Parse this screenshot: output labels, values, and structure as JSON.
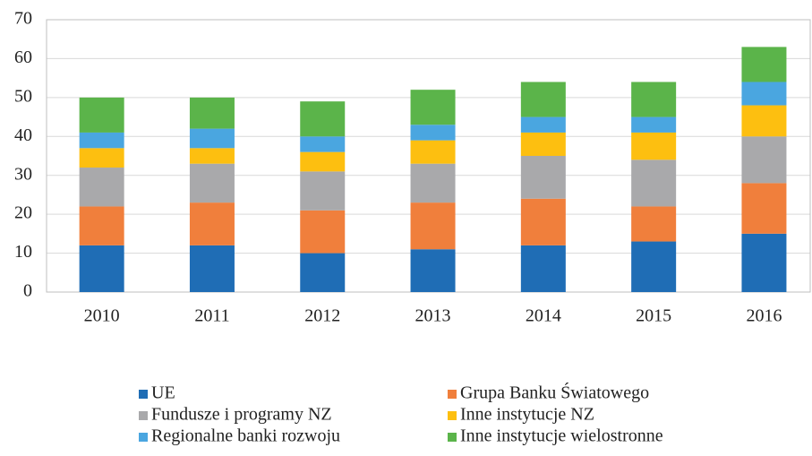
{
  "chart_data": {
    "type": "stacked_bar",
    "categories": [
      "2010",
      "2011",
      "2012",
      "2013",
      "2014",
      "2015",
      "2016"
    ],
    "series": [
      {
        "name": "UE",
        "color": "#1f6db5",
        "values": [
          12,
          12,
          10,
          11,
          12,
          13,
          15
        ]
      },
      {
        "name": "Grupa Banku Światowego",
        "color": "#f07f3c",
        "values": [
          10,
          11,
          11,
          12,
          12,
          9,
          13
        ]
      },
      {
        "name": "Fundusze i programy NZ",
        "color": "#a9a9ab",
        "values": [
          10,
          10,
          10,
          10,
          11,
          12,
          12
        ]
      },
      {
        "name": "Inne instytucje NZ",
        "color": "#fdbf10",
        "values": [
          5,
          4,
          5,
          6,
          6,
          7,
          8
        ]
      },
      {
        "name": "Regionalne banki rozwoju",
        "color": "#4aa6e0",
        "values": [
          4,
          5,
          4,
          4,
          4,
          4,
          6
        ]
      },
      {
        "name": "Inne instytucje wielostronne",
        "color": "#5bb44a",
        "values": [
          9,
          8,
          9,
          9,
          9,
          9,
          9
        ]
      }
    ],
    "ylim": [
      0,
      70
    ],
    "yticks": [
      0,
      10,
      20,
      30,
      40,
      50,
      60,
      70
    ],
    "grid": true
  }
}
